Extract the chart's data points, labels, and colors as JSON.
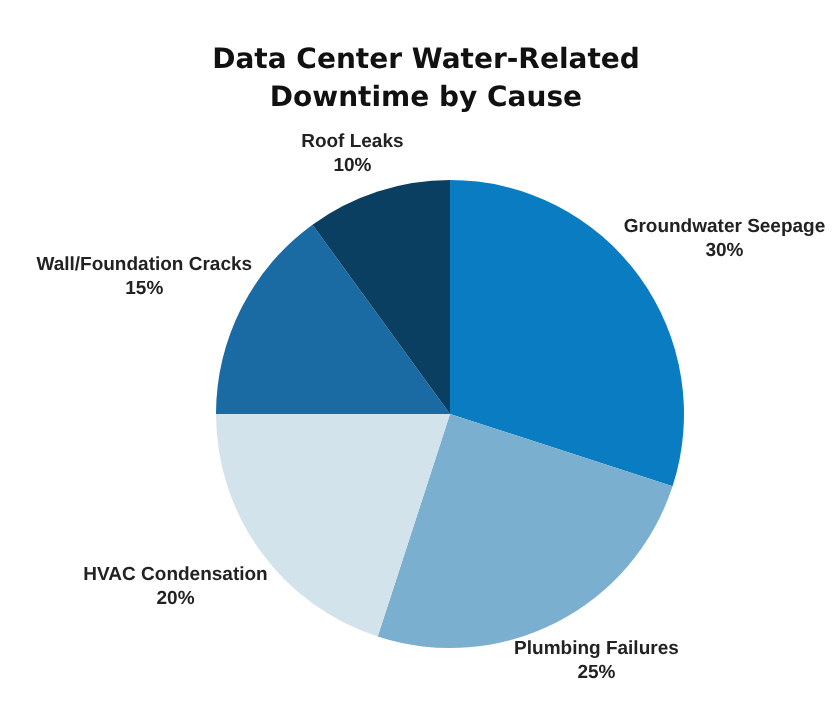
{
  "chart_data": {
    "type": "pie",
    "title": "Data Center Water-Related\nDowntime by Cause",
    "categories": [
      "Groundwater Seepage",
      "Plumbing Failures",
      "HVAC Condensation",
      "Wall/Foundation Cracks",
      "Roof Leaks"
    ],
    "values": [
      30,
      25,
      20,
      15,
      10
    ],
    "colors": [
      "#0a7cc1",
      "#7bafcf",
      "#d3e3ec",
      "#1a6aa4",
      "#0b3f62"
    ],
    "value_labels": [
      "30%",
      "25%",
      "20%",
      "15%",
      "10%"
    ]
  }
}
